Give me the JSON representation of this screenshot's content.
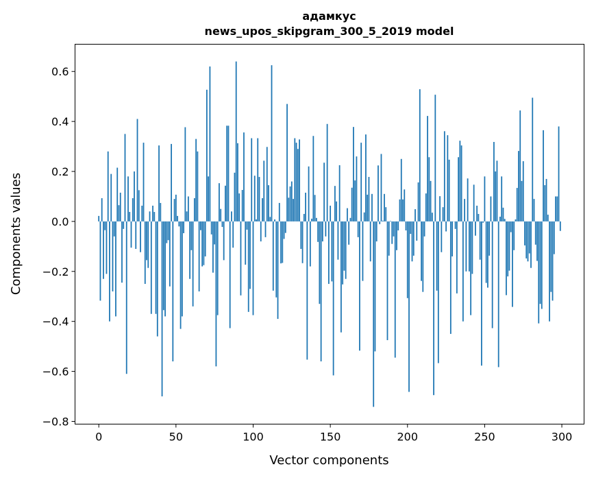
{
  "chart_data": {
    "type": "bar",
    "title_line1": "адамкус",
    "title_line2": "news_upos_skipgram_300_5_2019 model",
    "xlabel": "Vector components",
    "ylabel": "Components values",
    "xlim": [
      -15.4,
      314.4
    ],
    "ylim": [
      -0.811,
      0.709
    ],
    "xticks": [
      0,
      50,
      100,
      150,
      200,
      250,
      300
    ],
    "xtick_labels": [
      "0",
      "50",
      "100",
      "150",
      "200",
      "250",
      "300"
    ],
    "yticks": [
      -0.8,
      -0.6,
      -0.4,
      -0.2,
      0.0,
      0.2,
      0.4,
      0.6
    ],
    "ytick_labels": [
      "−0.8",
      "−0.6",
      "−0.4",
      "−0.2",
      "0.0",
      "0.2",
      "0.4",
      "0.6"
    ],
    "grid": false,
    "bar_color": "#1f77b4",
    "values": [
      0.022,
      -0.317,
      0.093,
      -0.23,
      -0.035,
      -0.21,
      0.28,
      -0.4,
      0.19,
      -0.28,
      -0.06,
      -0.38,
      0.215,
      0.065,
      0.115,
      -0.245,
      -0.03,
      0.35,
      -0.61,
      0.18,
      0.038,
      -0.105,
      0.093,
      0.2,
      -0.11,
      0.41,
      0.125,
      -0.123,
      0.063,
      0.315,
      -0.25,
      -0.155,
      -0.186,
      0.04,
      -0.37,
      0.063,
      0.038,
      -0.37,
      -0.46,
      0.304,
      0.074,
      -0.7,
      -0.355,
      -0.38,
      -0.087,
      -0.075,
      -0.26,
      0.31,
      -0.56,
      0.09,
      0.107,
      0.022,
      -0.02,
      -0.43,
      -0.38,
      -0.047,
      0.377,
      0.04,
      0.1,
      -0.23,
      -0.115,
      -0.34,
      0.093,
      0.33,
      0.28,
      -0.28,
      -0.035,
      -0.18,
      -0.175,
      -0.14,
      0.527,
      0.18,
      0.62,
      -0.052,
      -0.205,
      -0.092,
      -0.58,
      -0.375,
      0.153,
      0.05,
      -0.022,
      -0.155,
      0.143,
      0.383,
      0.383,
      -0.427,
      0.04,
      -0.105,
      0.195,
      0.64,
      0.313,
      0.112,
      -0.296,
      0.126,
      0.356,
      -0.173,
      -0.033,
      -0.362,
      -0.27,
      0.333,
      -0.375,
      0.183,
      0.008,
      0.333,
      0.178,
      -0.08,
      0.093,
      0.243,
      -0.063,
      0.298,
      0.145,
      0.018,
      0.625,
      -0.277,
      0.008,
      -0.304,
      -0.39,
      0.074,
      -0.168,
      -0.166,
      -0.07,
      -0.046,
      0.47,
      0.095,
      0.14,
      0.16,
      0.09,
      0.333,
      0.315,
      0.29,
      0.328,
      -0.11,
      -0.167,
      0.03,
      0.115,
      -0.553,
      0.22,
      -0.18,
      0.011,
      0.342,
      0.106,
      0.014,
      -0.082,
      -0.33,
      -0.56,
      -0.08,
      0.235,
      -0.06,
      0.39,
      -0.25,
      0.063,
      -0.24,
      -0.616,
      0.142,
      0.08,
      -0.153,
      0.225,
      -0.444,
      -0.252,
      -0.197,
      -0.23,
      0.053,
      -0.093,
      0.014,
      0.135,
      0.378,
      0.164,
      0.26,
      -0.063,
      -0.517,
      0.315,
      -0.238,
      0.036,
      0.348,
      0.107,
      0.178,
      -0.16,
      0.11,
      -0.742,
      -0.52,
      -0.08,
      0.224,
      -0.011,
      0.27,
      0.003,
      0.11,
      0.057,
      -0.475,
      -0.137,
      0.002,
      -0.09,
      -0.06,
      -0.545,
      -0.115,
      -0.036,
      0.088,
      0.25,
      0.088,
      0.128,
      -0.036,
      -0.307,
      -0.682,
      -0.05,
      -0.16,
      -0.137,
      0.049,
      -0.077,
      0.156,
      0.529,
      -0.238,
      -0.282,
      -0.06,
      0.112,
      0.422,
      0.257,
      0.162,
      0.035,
      -0.695,
      0.507,
      -0.277,
      -0.567,
      0.101,
      -0.123,
      0.057,
      0.361,
      -0.04,
      0.345,
      0.247,
      -0.45,
      -0.14,
      0.0,
      -0.03,
      -0.288,
      0.257,
      0.323,
      0.304,
      -0.4,
      0.09,
      -0.2,
      0.172,
      -0.2,
      -0.375,
      -0.21,
      0.147,
      -0.057,
      0.063,
      0.03,
      -0.153,
      -0.577,
      -0.005,
      0.18,
      -0.246,
      -0.265,
      -0.137,
      0.1,
      -0.427,
      0.318,
      0.2,
      0.243,
      -0.583,
      0.019,
      0.18,
      0.055,
      0.01,
      -0.295,
      -0.22,
      -0.197,
      -0.043,
      -0.342,
      -0.115,
      0.008,
      0.134,
      0.282,
      0.444,
      0.162,
      0.241,
      -0.096,
      -0.148,
      -0.16,
      -0.128,
      -0.186,
      0.495,
      0.09,
      -0.093,
      -0.158,
      -0.408,
      -0.33,
      -0.35,
      0.365,
      0.145,
      0.17,
      0.027,
      -0.4,
      -0.282,
      -0.317,
      -0.131,
      0.1,
      0.1,
      0.38,
      -0.038
    ]
  }
}
